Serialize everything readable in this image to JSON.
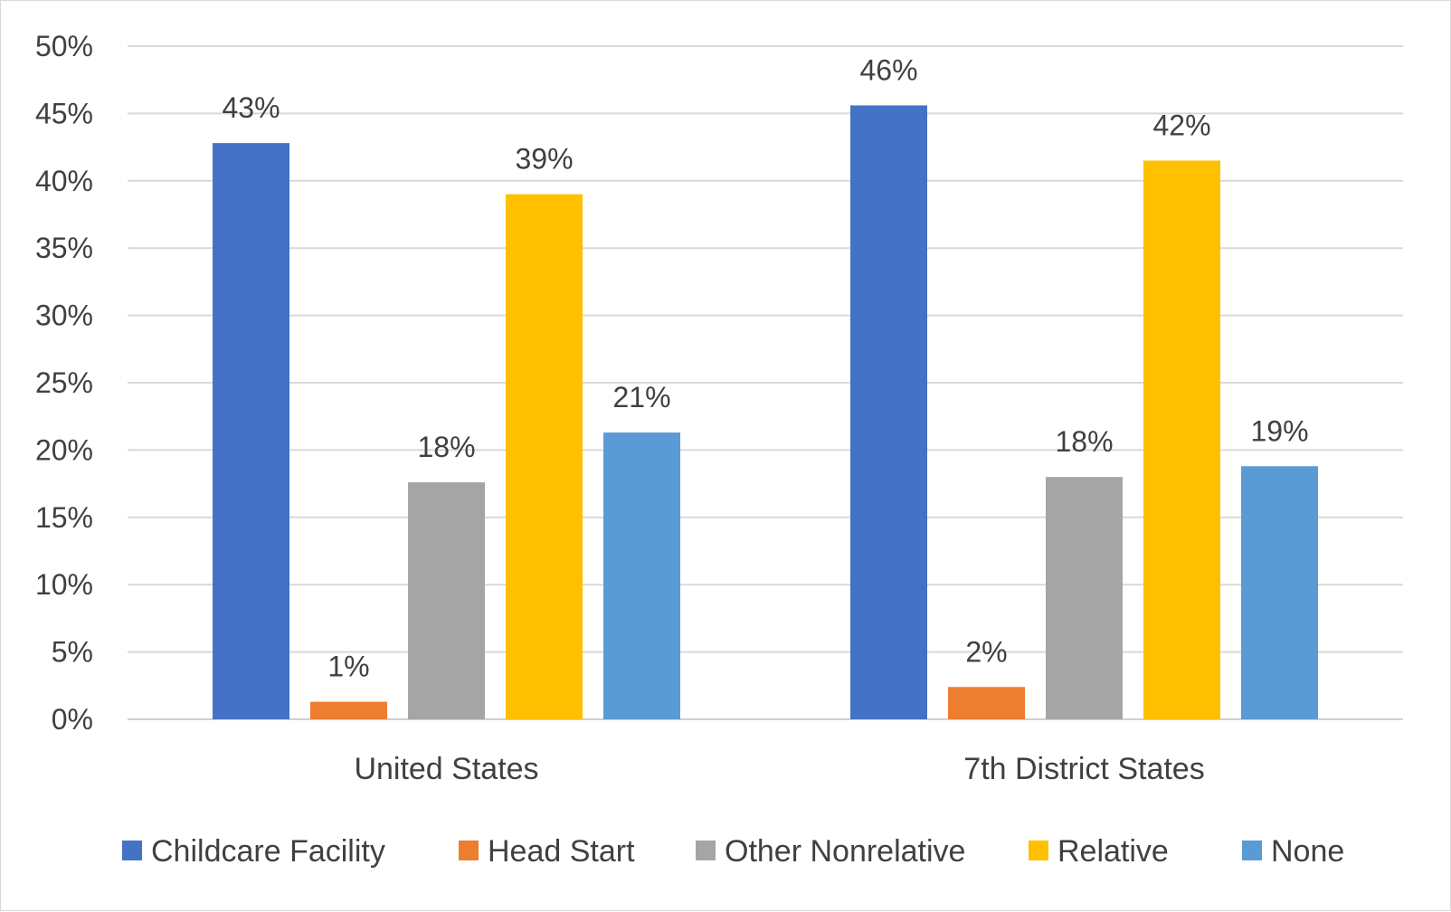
{
  "chart_data": {
    "type": "bar",
    "title": "",
    "xlabel": "",
    "ylabel": "",
    "categories": [
      "United States",
      "7th District States"
    ],
    "ylim": [
      0,
      50
    ],
    "yticks": [
      0,
      5,
      10,
      15,
      20,
      25,
      30,
      35,
      40,
      45,
      50
    ],
    "ytick_labels": [
      "0%",
      "5%",
      "10%",
      "15%",
      "20%",
      "25%",
      "30%",
      "35%",
      "40%",
      "45%",
      "50%"
    ],
    "grid": true,
    "legend_position": "bottom",
    "series": [
      {
        "name": "Childcare Facility",
        "color": "#4472C4",
        "values": [
          42.8,
          45.6
        ],
        "labels": [
          "43%",
          "46%"
        ]
      },
      {
        "name": "Head Start",
        "color": "#ED7D31",
        "values": [
          1.3,
          2.4
        ],
        "labels": [
          "1%",
          "2%"
        ]
      },
      {
        "name": "Other Nonrelative",
        "color": "#A5A5A5",
        "values": [
          17.6,
          18.0
        ],
        "labels": [
          "18%",
          "18%"
        ]
      },
      {
        "name": "Relative",
        "color": "#FFC000",
        "values": [
          39.0,
          41.5
        ],
        "labels": [
          "39%",
          "42%"
        ]
      },
      {
        "name": "None",
        "color": "#5B9BD5",
        "values": [
          21.3,
          18.8
        ],
        "labels": [
          "21%",
          "19%"
        ]
      }
    ]
  }
}
